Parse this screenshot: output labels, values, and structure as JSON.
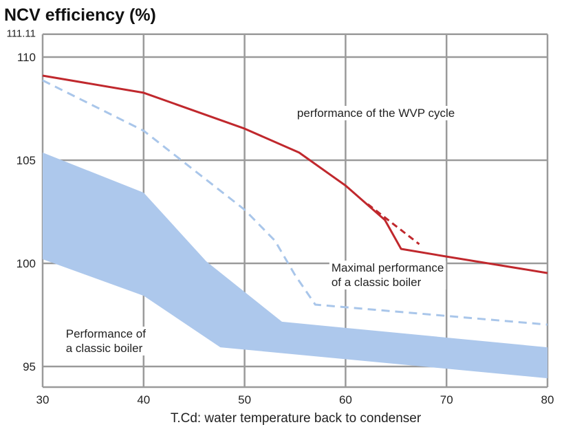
{
  "chart_data": {
    "type": "line",
    "title": "NCV efficiency (%)",
    "xlabel": "T.Cd: water temperature back to condenser",
    "ylabel": "",
    "xlim": [
      30,
      80
    ],
    "ylim": [
      94,
      111.11
    ],
    "xticks": [
      30,
      40,
      50,
      60,
      70,
      80
    ],
    "yticks": [
      95,
      100,
      105,
      110,
      111.11
    ],
    "ytick_labels": [
      "95",
      "100",
      "105",
      "110",
      "111.11"
    ],
    "grid": true,
    "colors": {
      "wvp": "#c0282d",
      "boiler": "#a9c6ea",
      "grid": "#9a9a9a"
    },
    "series": [
      {
        "key": "wvp",
        "style": "solid",
        "color": "#c0282d",
        "x": [
          30,
          40,
          50,
          55.4,
          60,
          63.9,
          65.5,
          70,
          80
        ],
        "y": [
          109.1,
          108.27,
          106.53,
          105.37,
          103.77,
          102.1,
          100.7,
          100.33,
          99.53
        ]
      },
      {
        "key": "wvp-extension",
        "style": "dashed",
        "color": "#c0282d",
        "x": [
          62.2,
          67.3
        ],
        "y": [
          102.87,
          100.93
        ]
      },
      {
        "key": "max-classic-boiler",
        "style": "dashed",
        "color": "#a9c6ea",
        "x": [
          30,
          40,
          50,
          53,
          55,
          57,
          80
        ],
        "y": [
          108.87,
          106.43,
          102.6,
          101.1,
          99.43,
          98.0,
          97.03
        ]
      }
    ],
    "band": {
      "key": "classic-boiler",
      "color": "#adc8ec",
      "upper": {
        "x": [
          30,
          40,
          46.2,
          53.7,
          80
        ],
        "y": [
          105.37,
          103.43,
          100.1,
          97.17,
          95.93
        ]
      },
      "lower": {
        "x": [
          30,
          40,
          47.6,
          80
        ],
        "y": [
          100.2,
          98.43,
          95.93,
          94.43
        ]
      }
    },
    "annotations": [
      {
        "lines": [
          "performance of the WVP cycle"
        ],
        "at": [
          55.2,
          107.1
        ]
      },
      {
        "lines": [
          "Maximal performance",
          "of a classic boiler"
        ],
        "at": [
          58.6,
          99.6
        ]
      },
      {
        "lines": [
          "Performance of",
          "a classic boiler"
        ],
        "at": [
          32.3,
          96.4
        ]
      }
    ]
  }
}
